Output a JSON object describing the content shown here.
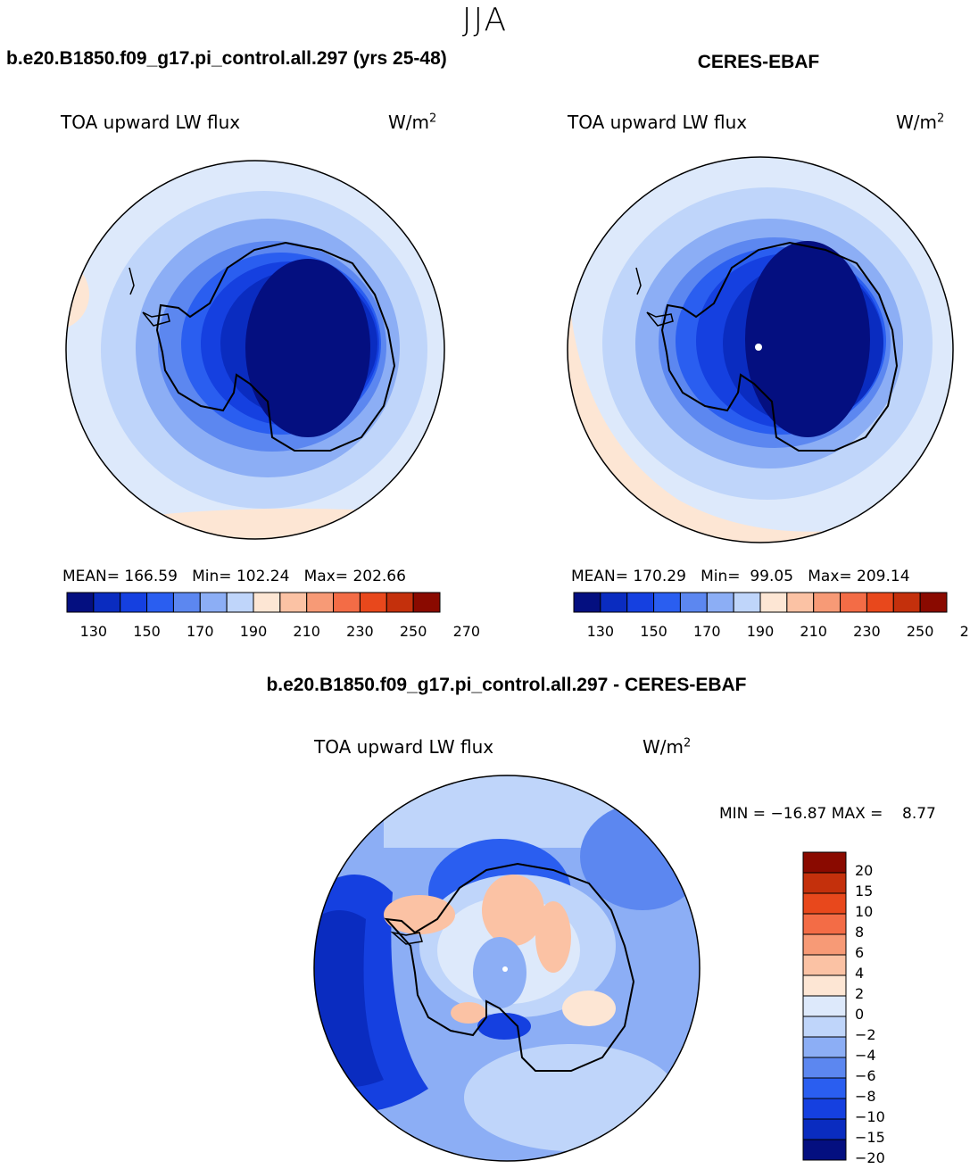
{
  "season": "JJA",
  "model_title": "b.e20.B1850.f09_g17.pi_control.all.297 (yrs 25-48)",
  "obs_title": "CERES-EBAF",
  "diff_title": "b.e20.B1850.f09_g17.pi_control.all.297 - CERES-EBAF",
  "variable": "TOA upward LW flux",
  "units": "W/m",
  "units_exp": "2",
  "model_panel": {
    "mean_label": "MEAN=",
    "mean": "166.59",
    "min_label": "Min=",
    "min": "102.24",
    "max_label": "Max=",
    "max": "202.66"
  },
  "obs_panel": {
    "mean_label": "MEAN=",
    "mean": "170.29",
    "min_label": "Min=",
    "min": "99.05",
    "max_label": "Max=",
    "max": "209.14"
  },
  "diff_panel": {
    "min_label": "MIN =",
    "min": "−16.87",
    "max_label": "MAX =",
    "max": "8.77"
  },
  "abs_colorbar": {
    "colors": [
      "#040f80",
      "#0a2cc0",
      "#1540e0",
      "#2a5ef0",
      "#5c87f0",
      "#8caef5",
      "#bfd5fa",
      "#fde6d4",
      "#fbc2a4",
      "#f79a76",
      "#f36c46",
      "#e8481c",
      "#c4300c",
      "#8a0a00"
    ],
    "ticks": [
      "130",
      "150",
      "170",
      "190",
      "210",
      "230",
      "250",
      "270"
    ]
  },
  "diff_colorbar": {
    "colors": [
      "#8a0a00",
      "#c4300c",
      "#e8481c",
      "#f36c46",
      "#f79a76",
      "#fbc2a4",
      "#fde6d4",
      "#dde9fb",
      "#bfd5fa",
      "#8caef5",
      "#5c87f0",
      "#2a5ef0",
      "#1540e0",
      "#0a2cc0",
      "#040f80"
    ],
    "ticks": [
      "20",
      "15",
      "10",
      "8",
      "6",
      "4",
      "2",
      "0",
      "−2",
      "−4",
      "−6",
      "−8",
      "−10",
      "−15",
      "−20"
    ]
  }
}
